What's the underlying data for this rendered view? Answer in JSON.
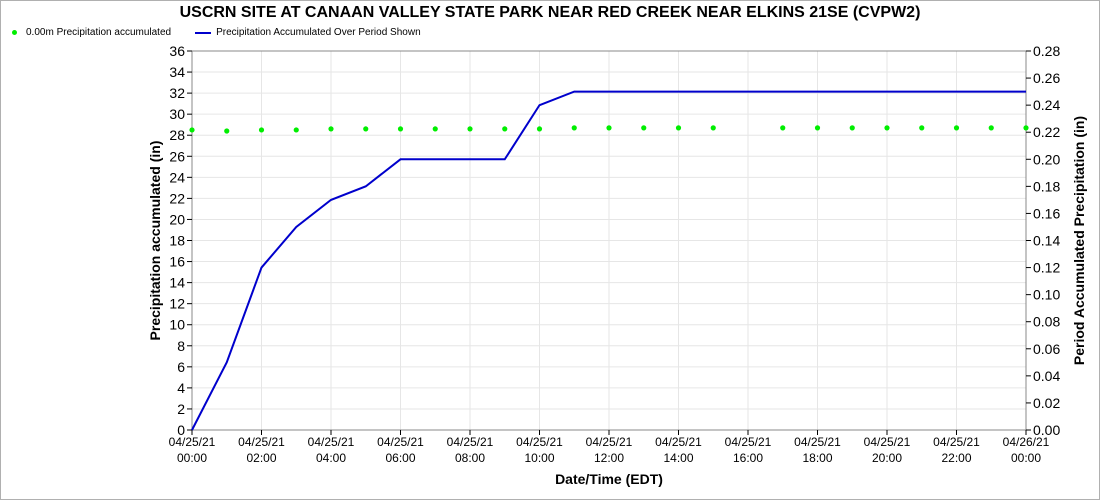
{
  "chart_data": {
    "type": "line",
    "title": "USCRN SITE AT CANAAN VALLEY STATE PARK NEAR RED CREEK NEAR ELKINS 21SE (CVPW2)",
    "xlabel": "Date/Time (EDT)",
    "ylabel_left": "Precipitation accumulated (in)",
    "ylabel_right": "Period Accumulated Precipitation (in)",
    "x_hours_range": [
      0,
      24
    ],
    "ylim_left": [
      0,
      36
    ],
    "ylim_right": [
      0,
      0.28
    ],
    "left_ticks": [
      "0",
      "2",
      "4",
      "6",
      "8",
      "10",
      "12",
      "14",
      "16",
      "18",
      "20",
      "22",
      "24",
      "26",
      "28",
      "30",
      "32",
      "34",
      "36"
    ],
    "right_ticks": [
      "0.00",
      "0.02",
      "0.04",
      "0.06",
      "0.08",
      "0.10",
      "0.12",
      "0.14",
      "0.16",
      "0.18",
      "0.20",
      "0.22",
      "0.24",
      "0.26",
      "0.28"
    ],
    "x_ticks": [
      {
        "date": "04/25/21",
        "time": "00:00"
      },
      {
        "date": "04/25/21",
        "time": "02:00"
      },
      {
        "date": "04/25/21",
        "time": "04:00"
      },
      {
        "date": "04/25/21",
        "time": "06:00"
      },
      {
        "date": "04/25/21",
        "time": "08:00"
      },
      {
        "date": "04/25/21",
        "time": "10:00"
      },
      {
        "date": "04/25/21",
        "time": "12:00"
      },
      {
        "date": "04/25/21",
        "time": "14:00"
      },
      {
        "date": "04/25/21",
        "time": "16:00"
      },
      {
        "date": "04/25/21",
        "time": "18:00"
      },
      {
        "date": "04/25/21",
        "time": "20:00"
      },
      {
        "date": "04/25/21",
        "time": "22:00"
      },
      {
        "date": "04/26/21",
        "time": "00:00"
      }
    ],
    "grid": true,
    "legend_position": "top-left",
    "series": [
      {
        "name": "0.00m Precipitation accumulated",
        "axis": "left",
        "style": "points",
        "color": "#00ee00",
        "x_hours": [
          0,
          1,
          2,
          3,
          4,
          5,
          6,
          7,
          8,
          9,
          10,
          11,
          12,
          13,
          14,
          15,
          17,
          18,
          19,
          20,
          21,
          22,
          23,
          24
        ],
        "values": [
          28.5,
          28.4,
          28.5,
          28.5,
          28.6,
          28.6,
          28.6,
          28.6,
          28.6,
          28.6,
          28.6,
          28.7,
          28.7,
          28.7,
          28.7,
          28.7,
          28.7,
          28.7,
          28.7,
          28.7,
          28.7,
          28.7,
          28.7,
          28.7
        ]
      },
      {
        "name": "Precipitation Accumulated Over Period Shown",
        "axis": "right",
        "style": "line",
        "color": "#0000cc",
        "x_hours": [
          0,
          1,
          2,
          3,
          4,
          5,
          6,
          7,
          8,
          9,
          10,
          11,
          24
        ],
        "values": [
          0.0,
          0.05,
          0.12,
          0.15,
          0.17,
          0.18,
          0.2,
          0.2,
          0.2,
          0.2,
          0.24,
          0.25,
          0.25
        ]
      }
    ]
  }
}
